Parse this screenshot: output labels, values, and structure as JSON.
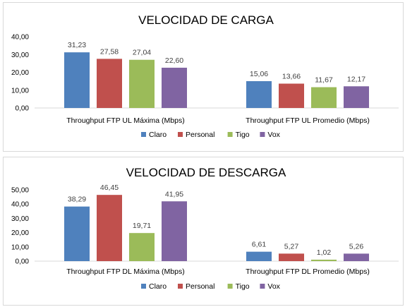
{
  "chart_data": [
    {
      "type": "bar",
      "title": "VELOCIDAD DE CARGA",
      "categories": [
        "Throughput FTP UL Máxima (Mbps)",
        "Throughput FTP UL Promedio (Mbps)"
      ],
      "series": [
        {
          "name": "Claro",
          "color": "#4f81bd",
          "values": [
            31.23,
            15.06
          ],
          "labels": [
            "31,23",
            "15,06"
          ]
        },
        {
          "name": "Personal",
          "color": "#c0504d",
          "values": [
            27.58,
            13.66
          ],
          "labels": [
            "27,58",
            "13,66"
          ]
        },
        {
          "name": "Tigo",
          "color": "#9bbb59",
          "values": [
            27.04,
            11.67
          ],
          "labels": [
            "27,04",
            "11,67"
          ]
        },
        {
          "name": "Vox",
          "color": "#8064a2",
          "values": [
            22.6,
            12.17
          ],
          "labels": [
            "22,60",
            "12,17"
          ]
        }
      ],
      "ylim": [
        0,
        40
      ],
      "yticks": [
        0,
        10,
        20,
        30,
        40
      ],
      "ytick_labels": [
        "0,00",
        "10,00",
        "20,00",
        "30,00",
        "40,00"
      ],
      "legend": "bottom",
      "grid": false
    },
    {
      "type": "bar",
      "title": "VELOCIDAD DE DESCARGA",
      "categories": [
        "Throughput FTP DL Máxima (Mbps)",
        "Throughput FTP DL Promedio (Mbps)"
      ],
      "series": [
        {
          "name": "Claro",
          "color": "#4f81bd",
          "values": [
            38.29,
            6.61
          ],
          "labels": [
            "38,29",
            "6,61"
          ]
        },
        {
          "name": "Personal",
          "color": "#c0504d",
          "values": [
            46.45,
            5.27
          ],
          "labels": [
            "46,45",
            "5,27"
          ]
        },
        {
          "name": "Tigo",
          "color": "#9bbb59",
          "values": [
            19.71,
            1.02
          ],
          "labels": [
            "19,71",
            "1,02"
          ]
        },
        {
          "name": "Vox",
          "color": "#8064a2",
          "values": [
            41.95,
            5.26
          ],
          "labels": [
            "41,95",
            "5,26"
          ]
        }
      ],
      "ylim": [
        0,
        50
      ],
      "yticks": [
        0,
        10,
        20,
        30,
        40,
        50
      ],
      "ytick_labels": [
        "0,00",
        "10,00",
        "20,00",
        "30,00",
        "40,00",
        "50,00"
      ],
      "legend": "bottom",
      "grid": false
    }
  ]
}
